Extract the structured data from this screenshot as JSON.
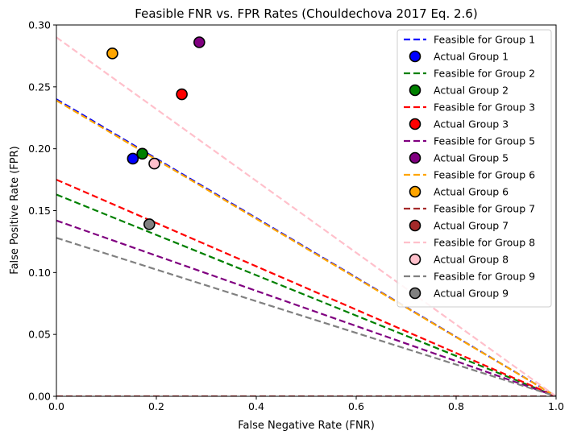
{
  "chart_data": {
    "type": "line",
    "title": "Feasible FNR vs. FPR Rates (Chouldechova 2017 Eq. 2.6)",
    "xlabel": "False Negative Rate (FNR)",
    "ylabel": "False Positive Rate (FPR)",
    "xlim": [
      0,
      1
    ],
    "ylim": [
      0,
      0.3
    ],
    "x_ticks": [
      "0.0",
      "0.2",
      "0.4",
      "0.6",
      "0.8",
      "1.0"
    ],
    "y_ticks": [
      "0.00",
      "0.05",
      "0.10",
      "0.15",
      "0.20",
      "0.25",
      "0.30"
    ],
    "grid": false,
    "legend_position": "top-right",
    "series": [
      {
        "name": "Feasible for Group 1",
        "kind": "line",
        "color": "#0000ff",
        "x": [
          0,
          1
        ],
        "y": [
          0.24,
          0
        ]
      },
      {
        "name": "Actual Group 1",
        "kind": "point",
        "color": "#0000ff",
        "x": [
          0.153
        ],
        "y": [
          0.192
        ]
      },
      {
        "name": "Feasible for Group 2",
        "kind": "line",
        "color": "#008000",
        "x": [
          0,
          1
        ],
        "y": [
          0.163,
          0
        ]
      },
      {
        "name": "Actual Group 2",
        "kind": "point",
        "color": "#008000",
        "x": [
          0.172
        ],
        "y": [
          0.196
        ]
      },
      {
        "name": "Feasible for Group 3",
        "kind": "line",
        "color": "#ff0000",
        "x": [
          0,
          1
        ],
        "y": [
          0.175,
          0
        ]
      },
      {
        "name": "Actual Group 3",
        "kind": "point",
        "color": "#ff0000",
        "x": [
          0.251
        ],
        "y": [
          0.244
        ]
      },
      {
        "name": "Feasible for Group 5",
        "kind": "line",
        "color": "#800080",
        "x": [
          0,
          1
        ],
        "y": [
          0.142,
          0
        ]
      },
      {
        "name": "Actual Group 5",
        "kind": "point",
        "color": "#800080",
        "x": [
          0.286
        ],
        "y": [
          0.286
        ]
      },
      {
        "name": "Feasible for Group 6",
        "kind": "line",
        "color": "#ffa500",
        "x": [
          0,
          1
        ],
        "y": [
          0.239,
          0
        ]
      },
      {
        "name": "Actual Group 6",
        "kind": "point",
        "color": "#ffa500",
        "x": [
          0.112
        ],
        "y": [
          0.277
        ]
      },
      {
        "name": "Feasible for Group 7",
        "kind": "line",
        "color": "#a52a2a",
        "x": [
          0,
          1
        ],
        "y": [
          0.0,
          0
        ]
      },
      {
        "name": "Actual Group 7",
        "kind": "point",
        "color": "#a52a2a",
        "x": [],
        "y": []
      },
      {
        "name": "Feasible for Group 8",
        "kind": "line",
        "color": "#ffc0cb",
        "x": [
          0,
          1
        ],
        "y": [
          0.29,
          0
        ]
      },
      {
        "name": "Actual Group 8",
        "kind": "point",
        "color": "#ffc0cb",
        "x": [
          0.196
        ],
        "y": [
          0.188
        ]
      },
      {
        "name": "Feasible for Group 9",
        "kind": "line",
        "color": "#808080",
        "x": [
          0,
          1
        ],
        "y": [
          0.128,
          0
        ]
      },
      {
        "name": "Actual Group 9",
        "kind": "point",
        "color": "#808080",
        "x": [
          0.186
        ],
        "y": [
          0.139
        ]
      }
    ]
  }
}
